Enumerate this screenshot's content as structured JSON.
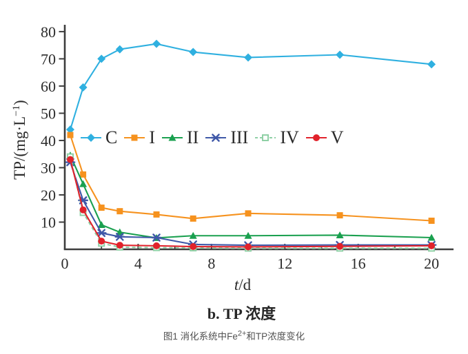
{
  "figure": {
    "subtitle": "b. TP 浓度",
    "caption": {
      "prefix": "图1 消化系统中Fe",
      "sup": "2+",
      "suffix": "和TP浓度变化"
    }
  },
  "chart_data": {
    "type": "line",
    "title": "",
    "xlabel": {
      "italic": "t",
      "rest": "/d"
    },
    "ylabel": {
      "prefix": "TP/(mg·L",
      "sup": "−1",
      "suffix": ")"
    },
    "xlim": [
      0,
      21.2
    ],
    "ylim": [
      0,
      82
    ],
    "x_ticks_major": [
      0,
      4,
      8,
      12,
      16,
      20
    ],
    "x_ticks_minor": [
      2,
      6,
      10,
      14,
      18
    ],
    "y_ticks": [
      10,
      20,
      30,
      40,
      50,
      60,
      70,
      80
    ],
    "grid": false,
    "legend_position": "inside-left-middle",
    "axis_color": "#3d3d3d",
    "x": [
      0.3,
      1,
      2,
      3,
      5,
      7,
      10,
      15,
      20
    ],
    "series": [
      {
        "name": "C",
        "color": "#2fb0e0",
        "marker": "diamond",
        "line": "solid",
        "values": [
          44,
          59.5,
          70,
          73.5,
          75.5,
          72.5,
          70.5,
          71.5,
          68
        ]
      },
      {
        "name": "I",
        "color": "#f6921e",
        "marker": "square",
        "line": "solid",
        "values": [
          42,
          27.5,
          15.3,
          14,
          12.8,
          11.3,
          13.2,
          12.5,
          10.5
        ]
      },
      {
        "name": "II",
        "color": "#1aa04f",
        "marker": "triangle",
        "line": "solid",
        "values": [
          34.5,
          24,
          9,
          6.3,
          4.2,
          5,
          5,
          5.2,
          4.3
        ]
      },
      {
        "name": "III",
        "color": "#3f58a8",
        "marker": "asterisk",
        "line": "solid",
        "values": [
          32,
          18,
          6,
          4.6,
          4.3,
          1.8,
          1.5,
          1.6,
          1.6
        ]
      },
      {
        "name": "IV",
        "color": "#8fd0a5",
        "marker": "open-square",
        "line": "dashed",
        "values": [
          34,
          13.5,
          2.2,
          0.8,
          0.6,
          0.5,
          0.4,
          0.4,
          0.4
        ]
      },
      {
        "name": "V",
        "color": "#e1222b",
        "marker": "circle",
        "line": "solid",
        "values": [
          33,
          14.5,
          3,
          1.5,
          1.3,
          1,
          0.9,
          1.1,
          1.3
        ]
      }
    ]
  }
}
